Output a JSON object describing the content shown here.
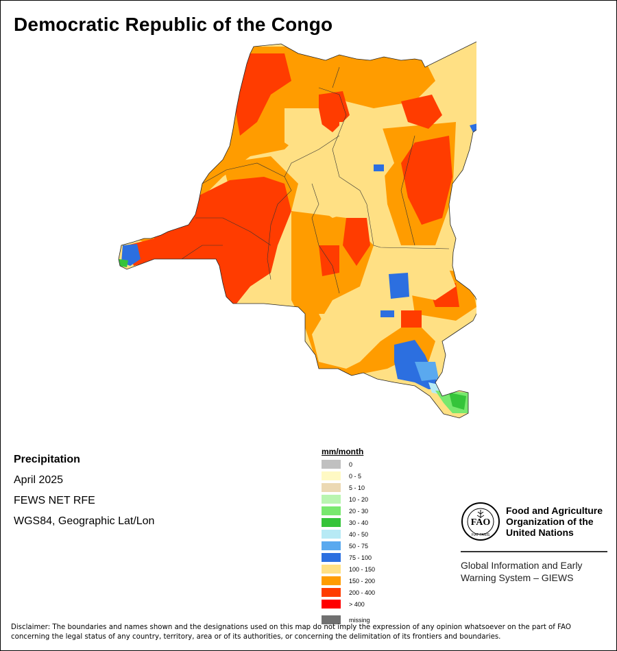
{
  "title": "Democratic Republic of the Congo",
  "meta": {
    "variable": "Precipitation",
    "period": "April 2025",
    "source": "FEWS NET RFE",
    "projection": "WGS84, Geographic Lat/Lon"
  },
  "legend": {
    "unit": "mm/month",
    "classes": [
      {
        "label": "0",
        "color": "#c0c0c0"
      },
      {
        "label": "0 - 5",
        "color": "#fff9c4"
      },
      {
        "label": "5 - 10",
        "color": "#ecd9b3"
      },
      {
        "label": "10 - 20",
        "color": "#b9f5b0"
      },
      {
        "label": "20 - 30",
        "color": "#78e86e"
      },
      {
        "label": "30 - 40",
        "color": "#35c43a"
      },
      {
        "label": "40 - 50",
        "color": "#b7eaf5"
      },
      {
        "label": "50 - 75",
        "color": "#5aa9ef"
      },
      {
        "label": "75 - 100",
        "color": "#2c6fe0"
      },
      {
        "label": "100 - 150",
        "color": "#ffe084"
      },
      {
        "label": "150 - 200",
        "color": "#ff9c00"
      },
      {
        "label": "200 - 400",
        "color": "#ff3c00"
      },
      {
        "label": "> 400",
        "color": "#ff0000"
      }
    ],
    "missing": {
      "label": "missing",
      "color": "#707070"
    }
  },
  "logo": {
    "icon": "fao-logo-icon",
    "org_name": [
      "Food and Agriculture",
      "Organization of the",
      "United Nations"
    ],
    "program": [
      "Global Information and Early",
      "Warning System – GIEWS"
    ]
  },
  "disclaimer": "Disclaimer: The boundaries and names shown and the designations used on this map do not imply the expression of any opinion whatsoever on the part of FAO concerning the legal status of any country, territory, area or of its authorities, or concerning the delimitation of its frontiers and boundaries."
}
